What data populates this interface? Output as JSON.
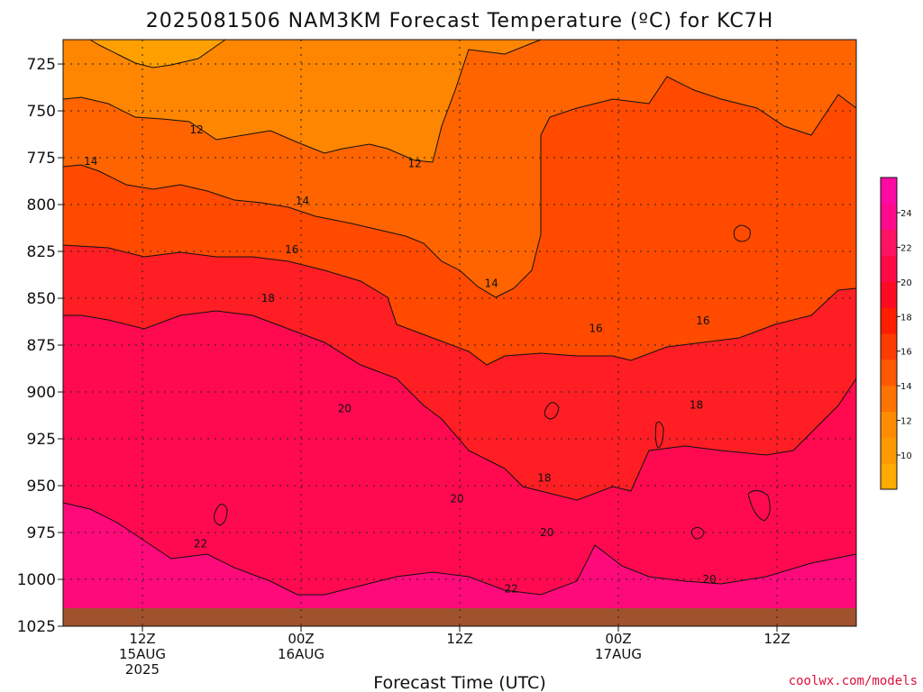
{
  "chart_data": {
    "type": "heatmap",
    "title": "2025081506 NAM3KM Forecast Temperature (ºC) for KC7H",
    "xlabel": "Forecast Time (UTC)",
    "ylabel": "",
    "credit": "coolwx.com/models",
    "x_ticks": [
      {
        "hour": 6,
        "line1": "12Z",
        "line2": "15AUG",
        "line3": "2025"
      },
      {
        "hour": 18,
        "line1": "00Z",
        "line2": "16AUG",
        "line3": ""
      },
      {
        "hour": 30,
        "line1": "12Z",
        "line2": "",
        "line3": ""
      },
      {
        "hour": 42,
        "line1": "00Z",
        "line2": "17AUG",
        "line3": ""
      },
      {
        "hour": 54,
        "line1": "12Z",
        "line2": "",
        "line3": ""
      }
    ],
    "xlim_hours": [
      0,
      60
    ],
    "y_pressure_levels": [
      "725",
      "750",
      "775",
      "800",
      "825",
      "850",
      "875",
      "900",
      "925",
      "950",
      "975",
      "1000",
      "1025"
    ],
    "ylim_hPa": [
      712,
      1025
    ],
    "colorbar": {
      "ticks": [
        "10",
        "12",
        "14",
        "16",
        "18",
        "20",
        "22",
        "24"
      ],
      "colors": [
        "#ffaa00",
        "#ff9900",
        "#ff8c00",
        "#ff7300",
        "#ff5a00",
        "#ff3c00",
        "#ff1e00",
        "#ff0a23",
        "#ff0a46",
        "#ff1464",
        "#ff0a8c",
        "#ff0aa5"
      ]
    },
    "contour_levels": [
      12,
      14,
      16,
      18,
      20,
      22
    ],
    "contour_labels": [
      {
        "text": "12",
        "hour": 10.1,
        "hPa": 760
      },
      {
        "text": "12",
        "hour": 26.6,
        "hPa": 778
      },
      {
        "text": "14",
        "hour": 2.1,
        "hPa": 777
      },
      {
        "text": "14",
        "hour": 18.1,
        "hPa": 798
      },
      {
        "text": "14",
        "hour": 32.4,
        "hPa": 842
      },
      {
        "text": "16",
        "hour": 17.3,
        "hPa": 824
      },
      {
        "text": "16",
        "hour": 40.3,
        "hPa": 866
      },
      {
        "text": "16",
        "hour": 48.4,
        "hPa": 862
      },
      {
        "text": "18",
        "hour": 15.5,
        "hPa": 850
      },
      {
        "text": "18",
        "hour": 36.4,
        "hPa": 946
      },
      {
        "text": "18",
        "hour": 47.9,
        "hPa": 907
      },
      {
        "text": "20",
        "hour": 21.3,
        "hPa": 909
      },
      {
        "text": "20",
        "hour": 29.8,
        "hPa": 957
      },
      {
        "text": "20",
        "hour": 36.6,
        "hPa": 975
      },
      {
        "text": "20",
        "hour": 48.9,
        "hPa": 1000
      },
      {
        "text": "22",
        "hour": 10.4,
        "hPa": 981
      },
      {
        "text": "22",
        "hour": 33.9,
        "hPa": 1005
      }
    ],
    "grid": "dotted"
  }
}
